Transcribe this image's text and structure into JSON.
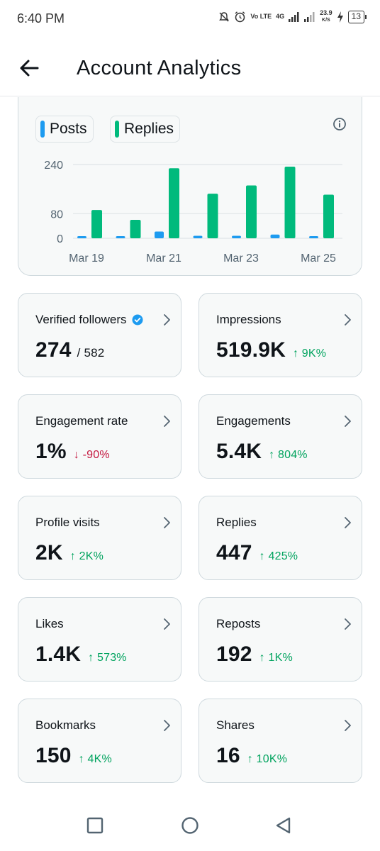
{
  "status_bar": {
    "time": "6:40 PM",
    "network": "4G",
    "volte": "Vo LTE",
    "speed_value": "23.9",
    "speed_unit": "K/S",
    "battery": "13"
  },
  "header": {
    "back_icon": "arrow-left-icon",
    "title": "Account Analytics"
  },
  "chart": {
    "legend": [
      {
        "label": "Posts",
        "color": "#1d9bf0"
      },
      {
        "label": "Replies",
        "color": "#00ba7c"
      }
    ],
    "info_icon": "info-circle-icon"
  },
  "chart_data": {
    "type": "bar",
    "categories": [
      "Mar 19",
      "Mar 20",
      "Mar 21",
      "Mar 22",
      "Mar 23",
      "Mar 24",
      "Mar 25"
    ],
    "x_tick_labels": [
      "Mar 19",
      "Mar 21",
      "Mar 23",
      "Mar 25"
    ],
    "y_tick_labels": [
      "240",
      "80",
      "0"
    ],
    "y_ticks": [
      240,
      80,
      0
    ],
    "ylim": [
      0,
      240
    ],
    "series": [
      {
        "name": "Posts",
        "color": "#1d9bf0",
        "values": [
          6,
          6,
          22,
          8,
          8,
          12,
          3
        ]
      },
      {
        "name": "Replies",
        "color": "#00ba7c",
        "values": [
          92,
          60,
          228,
          145,
          172,
          233,
          142
        ]
      }
    ],
    "grid": true,
    "legend_position": "top-left"
  },
  "stats": [
    {
      "title": "Verified followers",
      "value": "274",
      "sub": "/ 582",
      "change": "",
      "direction": "",
      "verified_badge": true
    },
    {
      "title": "Impressions",
      "value": "519.9K",
      "sub": "",
      "change": "↑ 9K%",
      "direction": "up"
    },
    {
      "title": "Engagement rate",
      "value": "1%",
      "sub": "",
      "change": "↓ -90%",
      "direction": "down"
    },
    {
      "title": "Engagements",
      "value": "5.4K",
      "sub": "",
      "change": "↑ 804%",
      "direction": "up"
    },
    {
      "title": "Profile visits",
      "value": "2K",
      "sub": "",
      "change": "↑ 2K%",
      "direction": "up"
    },
    {
      "title": "Replies",
      "value": "447",
      "sub": "",
      "change": "↑ 425%",
      "direction": "up"
    },
    {
      "title": "Likes",
      "value": "1.4K",
      "sub": "",
      "change": "↑ 573%",
      "direction": "up"
    },
    {
      "title": "Reposts",
      "value": "192",
      "sub": "",
      "change": "↑ 1K%",
      "direction": "up"
    },
    {
      "title": "Bookmarks",
      "value": "150",
      "sub": "",
      "change": "↑ 4K%",
      "direction": "up"
    },
    {
      "title": "Shares",
      "value": "16",
      "sub": "",
      "change": "↑ 10K%",
      "direction": "up"
    }
  ],
  "nav": {
    "recents_icon": "square-icon",
    "home_icon": "circle-icon",
    "back_icon": "triangle-back-icon"
  }
}
